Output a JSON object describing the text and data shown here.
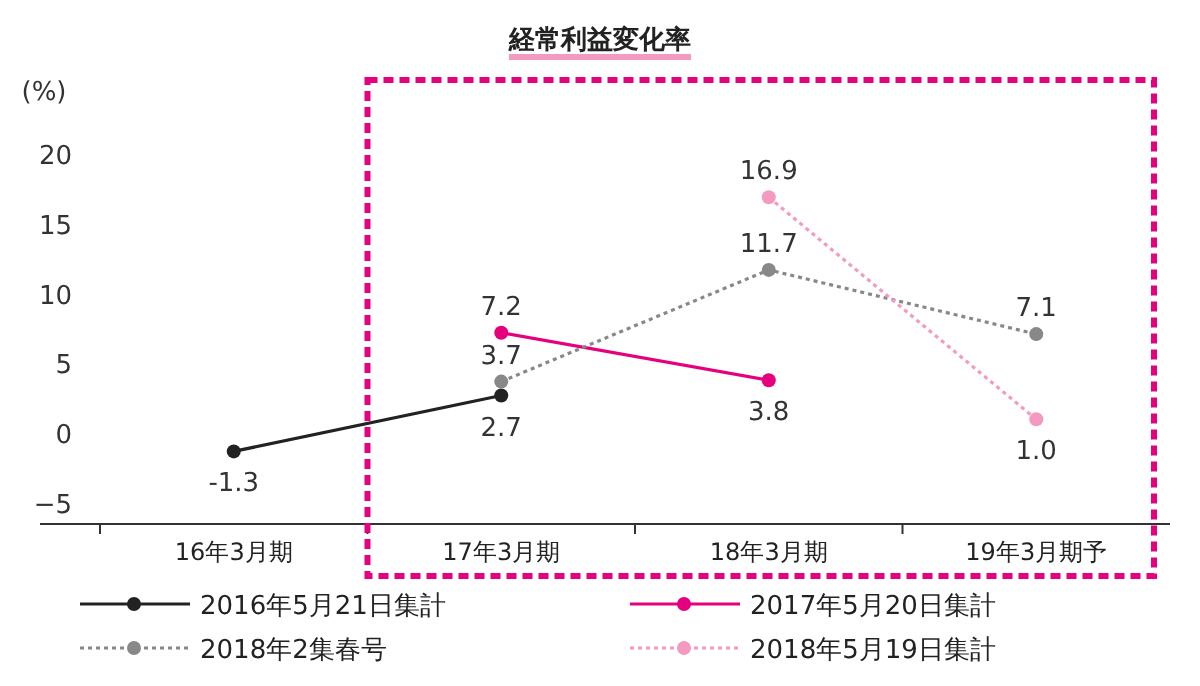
{
  "chart_data": {
    "type": "line",
    "title": "経常利益変化率",
    "ylabel": "(%)",
    "categories": [
      "16年3月期",
      "17年3月期",
      "18年3月期",
      "19年3月期予"
    ],
    "series": [
      {
        "name": "2016年5月21日集計",
        "color": "#222222",
        "line_style": "solid",
        "values": [
          -1.3,
          2.7,
          null,
          null
        ],
        "value_labels": [
          "-1.3",
          "2.7",
          null,
          null
        ]
      },
      {
        "name": "2017年5月20日集計",
        "color": "#e6007e",
        "line_style": "solid",
        "values": [
          null,
          7.2,
          3.8,
          null
        ],
        "value_labels": [
          null,
          "7.2",
          "3.8",
          null
        ]
      },
      {
        "name": "2018年2集春号",
        "color": "#888888",
        "line_style": "dotted",
        "values": [
          null,
          3.7,
          11.7,
          7.1
        ],
        "value_labels": [
          null,
          "3.7",
          "11.7",
          "7.1"
        ]
      },
      {
        "name": "2018年5月19日集計",
        "color": "#f49ac1",
        "line_style": "dotted",
        "values": [
          null,
          null,
          16.9,
          1.0
        ],
        "value_labels": [
          null,
          null,
          "16.9",
          "1.0"
        ]
      }
    ],
    "ylim": [
      -6.5,
      20
    ],
    "yticks": [
      -5,
      0,
      5,
      10,
      15,
      20
    ],
    "marker": "circle",
    "legend": "bottom",
    "grid": false
  }
}
